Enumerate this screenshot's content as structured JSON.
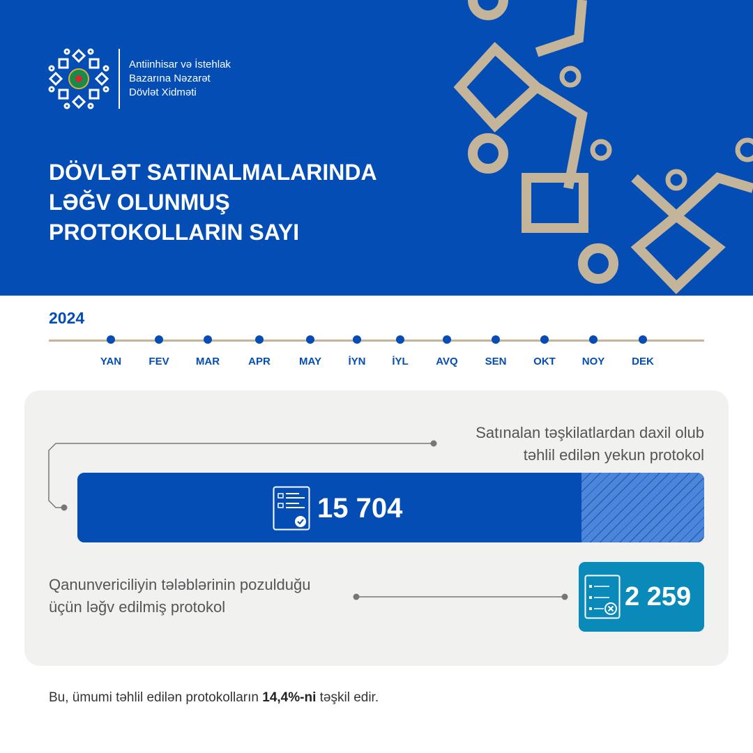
{
  "header": {
    "org_lines": [
      "Antiinhisar və İstehlak",
      "Bazarına Nəzarət",
      "Dövlət Xidməti"
    ],
    "title_lines": [
      "DÖVLƏT SATINALMALARINDA",
      "LƏĞV OLUNMUŞ",
      "PROTOKOLLARIN SAYI"
    ]
  },
  "timeline": {
    "year": "2024",
    "months": [
      "YAN",
      "FEV",
      "MAR",
      "APR",
      "MAY",
      "İYN",
      "İYL",
      "AVQ",
      "SEN",
      "OKT",
      "NOY",
      "DEK"
    ]
  },
  "stats": {
    "total": {
      "label_lines": [
        "Satınalan təşkilatlardan daxil olub",
        "təhlil edilən yekun protokol"
      ],
      "value": "15 704",
      "icon": "checklist-check-icon"
    },
    "cancelled": {
      "label_lines": [
        "Qanunvericiliyin tələblərinin pozulduğu",
        "üçün ləğv edilmiş protokol"
      ],
      "value": "2 259",
      "icon": "checklist-cross-icon"
    },
    "cancelled_share_percent": 14.4
  },
  "footer": {
    "prefix": "Bu, ümumi təhlil edilən protokolların ",
    "highlight": "14,4%-ni",
    "suffix": " təşkil edir."
  },
  "colors": {
    "primary": "#034db4",
    "accent": "#c4b49a",
    "teal": "#0a8ab8",
    "panel": "#f1f1f0"
  }
}
